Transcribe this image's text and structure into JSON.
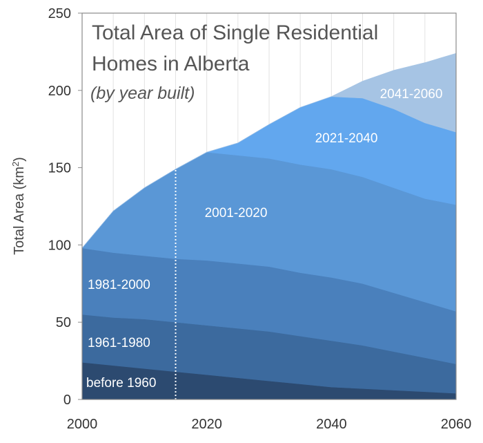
{
  "chart_data": {
    "type": "area",
    "stacked": true,
    "title": "Total Area of Single Residential Homes in Alberta",
    "subtitle": "(by year built)",
    "xlabel": "",
    "ylabel": "Total Area (km²)",
    "xlim": [
      2000,
      2060
    ],
    "ylim": [
      0,
      250
    ],
    "x_ticks": [
      2000,
      2020,
      2040,
      2060
    ],
    "y_ticks": [
      0,
      50,
      100,
      150,
      200,
      250
    ],
    "marker_line_x": 2015,
    "x": [
      2000,
      2005,
      2010,
      2015,
      2020,
      2025,
      2030,
      2035,
      2040,
      2045,
      2050,
      2055,
      2060
    ],
    "series": [
      {
        "name": "before 1960",
        "color": "#2c4a70",
        "values": [
          24,
          22,
          20,
          18,
          16,
          14,
          12,
          10,
          8,
          7,
          6,
          5,
          4
        ]
      },
      {
        "name": "1961-1980",
        "color": "#3c6a9e",
        "values": [
          31,
          31,
          32,
          32,
          32,
          32,
          32,
          31,
          30,
          28,
          25,
          22,
          19
        ]
      },
      {
        "name": "1981-2000",
        "color": "#4a80bc",
        "values": [
          43,
          42,
          41,
          41,
          42,
          42,
          42,
          41,
          41,
          40,
          38,
          36,
          34
        ]
      },
      {
        "name": "2001-2020",
        "color": "#5a97d6",
        "values": [
          0,
          27,
          44,
          58,
          70,
          70,
          70,
          70,
          70,
          69,
          68,
          67,
          69
        ]
      },
      {
        "name": "2021-2040",
        "color": "#62a7ee",
        "values": [
          0,
          0,
          0,
          0,
          0,
          8,
          22,
          37,
          47,
          51,
          51,
          49,
          47
        ]
      },
      {
        "name": "2041-2060",
        "color": "#a6c4e4",
        "values": [
          0,
          0,
          0,
          0,
          0,
          0,
          0,
          0,
          0,
          11,
          25,
          39,
          51
        ]
      }
    ]
  }
}
